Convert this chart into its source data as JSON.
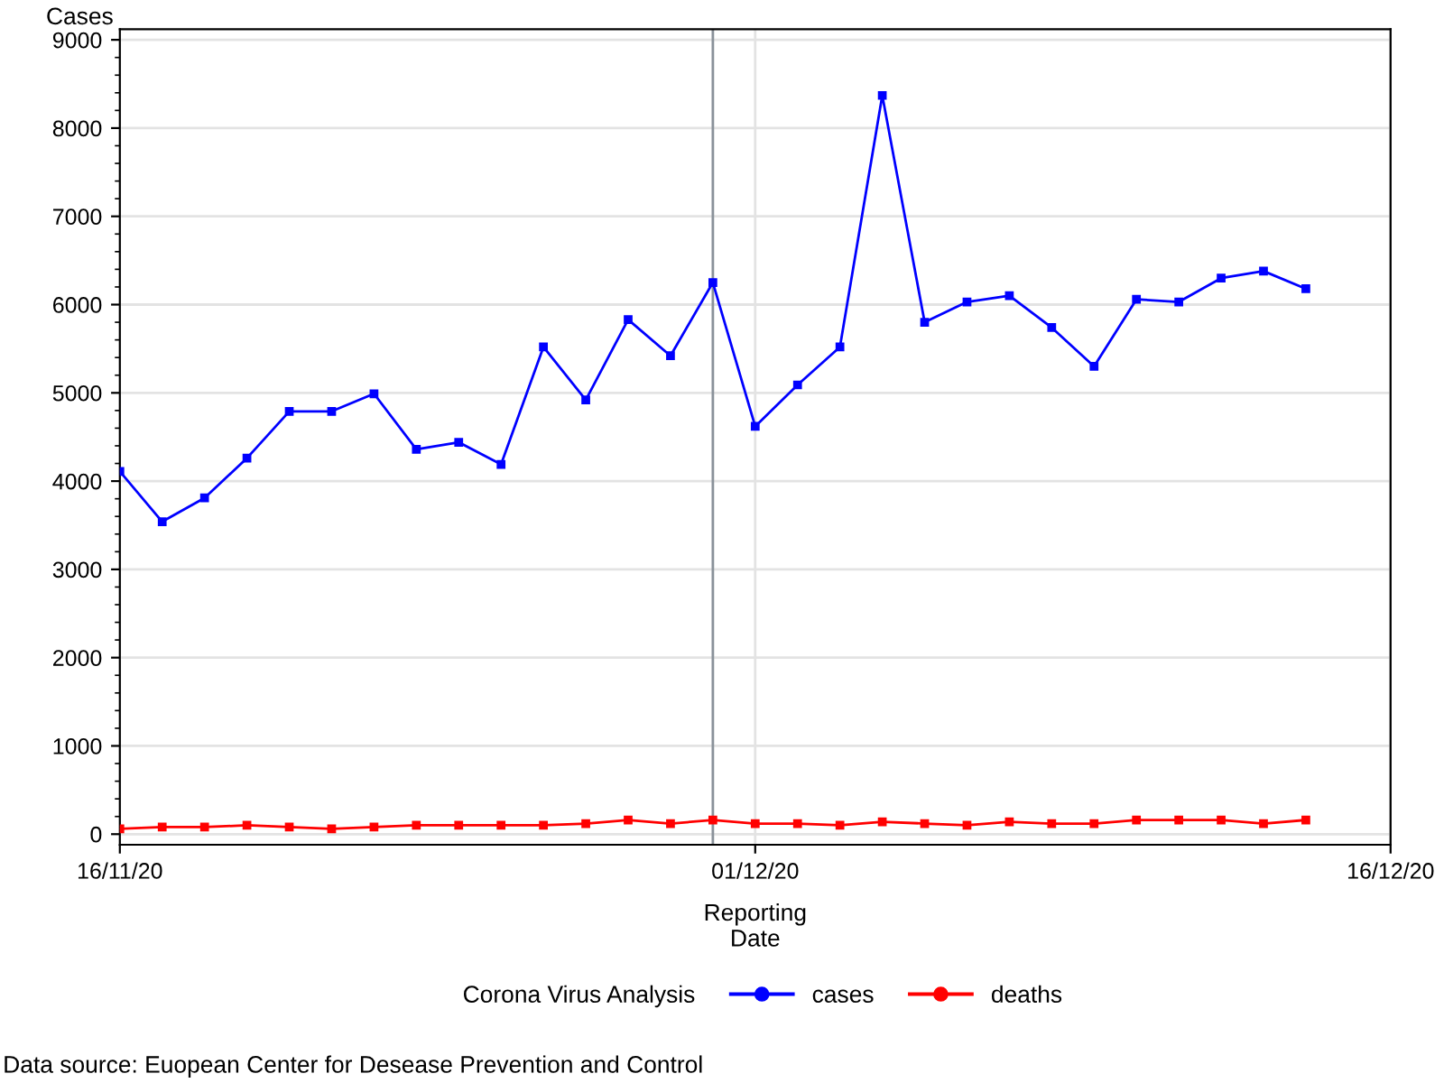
{
  "chart_data": {
    "type": "line",
    "xlabel": "Reporting\nDate",
    "ylabel": "Cases",
    "legend_title": "Corona Virus Analysis",
    "legend": "bottom",
    "grid": true,
    "marker": "square",
    "line_style": "solid",
    "x": [
      "2020-11-16",
      "2020-11-17",
      "2020-11-18",
      "2020-11-19",
      "2020-11-20",
      "2020-11-21",
      "2020-11-22",
      "2020-11-23",
      "2020-11-24",
      "2020-11-25",
      "2020-11-26",
      "2020-11-27",
      "2020-11-28",
      "2020-11-29",
      "2020-11-30",
      "2020-12-01",
      "2020-12-02",
      "2020-12-03",
      "2020-12-04",
      "2020-12-05",
      "2020-12-06",
      "2020-12-07",
      "2020-12-08",
      "2020-12-09",
      "2020-12-10",
      "2020-12-11",
      "2020-12-12",
      "2020-12-13",
      "2020-12-14"
    ],
    "series": [
      {
        "name": "cases",
        "color": "#0000ff",
        "values": [
          4110,
          3540,
          3810,
          4260,
          4790,
          4790,
          4990,
          4360,
          4440,
          4190,
          5520,
          4920,
          5830,
          5420,
          6250,
          4620,
          5090,
          5520,
          8370,
          5800,
          6030,
          6100,
          5740,
          5300,
          6060,
          6030,
          6300,
          6380,
          6180
        ]
      },
      {
        "name": "deaths",
        "color": "#ff0000",
        "values": [
          60,
          80,
          80,
          100,
          80,
          60,
          80,
          100,
          100,
          100,
          100,
          120,
          160,
          120,
          160,
          120,
          120,
          100,
          140,
          120,
          100,
          140,
          120,
          120,
          160,
          160,
          160,
          120,
          160
        ]
      }
    ],
    "xlim": [
      "2020-11-16",
      "2020-12-16"
    ],
    "xticks": [
      {
        "value": "2020-11-16",
        "label": "16/11/20"
      },
      {
        "value": "2020-12-01",
        "label": "01/12/20"
      },
      {
        "value": "2020-12-16",
        "label": "16/12/20"
      }
    ],
    "ylim": [
      -120,
      9120
    ],
    "yticks": [
      0,
      1000,
      2000,
      3000,
      4000,
      5000,
      6000,
      7000,
      8000,
      9000
    ],
    "ref_lines": [
      {
        "axis": "x",
        "value": "2020-11-30",
        "color": "#8a929a"
      }
    ],
    "annotations": [
      "Data source: Euopean Center for Desease Prevention and Control"
    ]
  }
}
